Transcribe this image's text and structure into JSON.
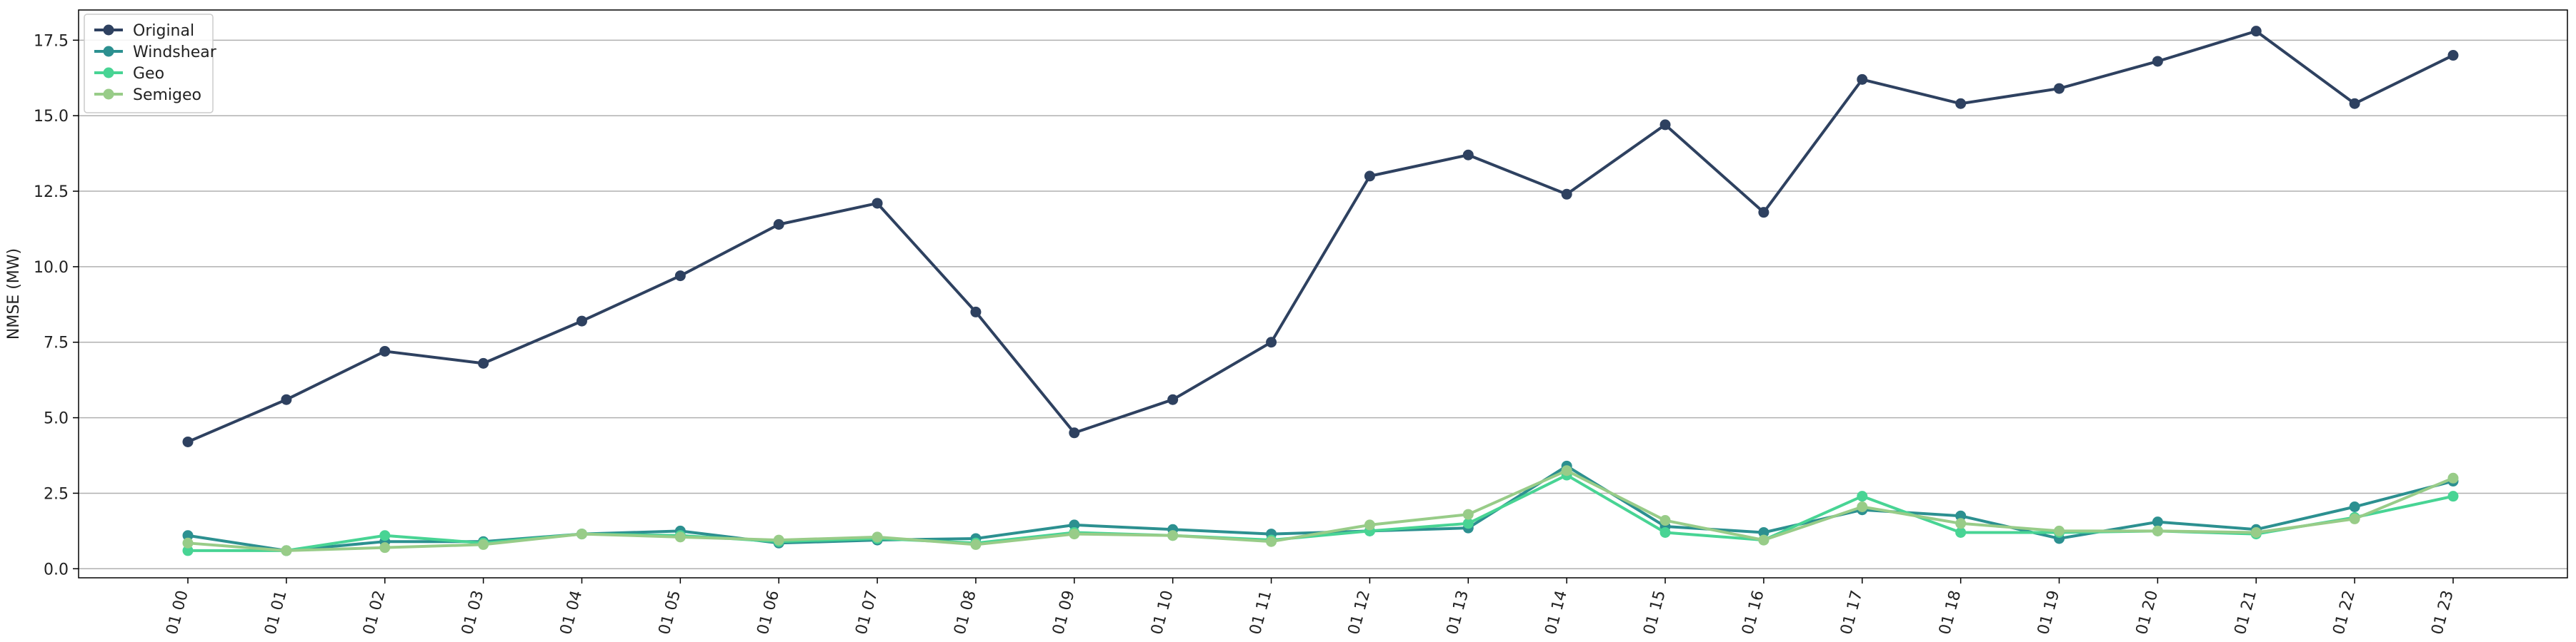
{
  "chart_data": {
    "type": "line",
    "title": "",
    "xlabel": "",
    "ylabel": "NMSE (MW)",
    "ylim": [
      -0.3,
      18.5
    ],
    "yticks": [
      0.0,
      2.5,
      5.0,
      7.5,
      10.0,
      12.5,
      15.0,
      17.5
    ],
    "ytick_labels": [
      "0.0",
      "2.5",
      "5.0",
      "7.5",
      "10.0",
      "12.5",
      "15.0",
      "17.5"
    ],
    "grid": "horizontal",
    "legend_position": "top-left",
    "categories": [
      "01 00",
      "01 01",
      "01 02",
      "01 03",
      "01 04",
      "01 05",
      "01 06",
      "01 07",
      "01 08",
      "01 09",
      "01 10",
      "01 11",
      "01 12",
      "01 13",
      "01 14",
      "01 15",
      "01 16",
      "01 17",
      "01 18",
      "01 19",
      "01 20",
      "01 21",
      "01 22",
      "01 23"
    ],
    "series": [
      {
        "name": "Original",
        "color": "#2e4160",
        "values": [
          4.2,
          5.6,
          7.2,
          6.8,
          8.2,
          9.7,
          11.4,
          12.1,
          8.5,
          4.5,
          5.6,
          7.5,
          13.0,
          13.7,
          12.4,
          14.7,
          11.8,
          16.2,
          15.4,
          15.9,
          16.8,
          17.8,
          15.4,
          17.0
        ]
      },
      {
        "name": "Windshear",
        "color": "#2c9090",
        "values": [
          1.1,
          0.6,
          0.9,
          0.9,
          1.15,
          1.25,
          0.85,
          0.95,
          1.0,
          1.45,
          1.3,
          1.15,
          1.25,
          1.35,
          3.4,
          1.4,
          1.2,
          1.95,
          1.75,
          1.0,
          1.55,
          1.3,
          2.05,
          2.9
        ]
      },
      {
        "name": "Geo",
        "color": "#48d494",
        "values": [
          0.6,
          0.6,
          1.1,
          0.85,
          1.15,
          1.1,
          0.9,
          1.0,
          0.85,
          1.2,
          1.1,
          0.95,
          1.25,
          1.5,
          3.1,
          1.2,
          0.95,
          2.4,
          1.2,
          1.2,
          1.25,
          1.15,
          1.7,
          2.4
        ]
      },
      {
        "name": "Semigeo",
        "color": "#98cc88",
        "values": [
          0.85,
          0.6,
          0.7,
          0.8,
          1.15,
          1.05,
          0.95,
          1.05,
          0.8,
          1.15,
          1.1,
          0.9,
          1.45,
          1.8,
          3.25,
          1.6,
          0.95,
          2.05,
          1.5,
          1.25,
          1.25,
          1.2,
          1.65,
          3.0
        ]
      }
    ]
  }
}
